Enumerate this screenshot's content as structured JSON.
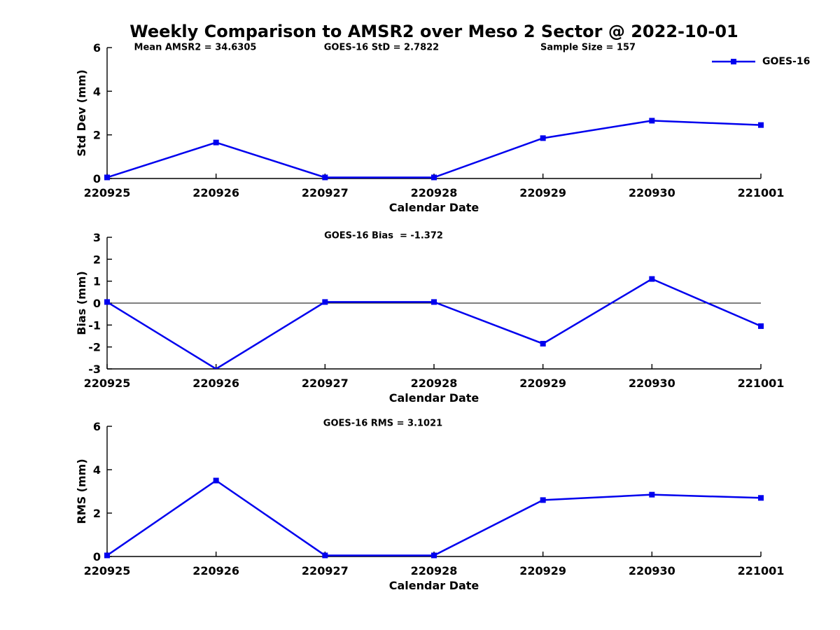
{
  "title": "Weekly Comparison to AMSR2 over Meso 2 Sector @ 2022-10-01",
  "colors": {
    "series": "#0000EE",
    "axis": "#000000",
    "background": "#FFFFFF"
  },
  "legend": {
    "label": "GOES-16"
  },
  "chart_data": [
    {
      "type": "line",
      "id": "std-dev",
      "annotations": [
        "Mean AMSR2 = 34.6305",
        "GOES-16 StD = 2.7822",
        "Sample Size = 157"
      ],
      "categories": [
        "220925",
        "220926",
        "220927",
        "220928",
        "220929",
        "220930",
        "221001"
      ],
      "series": [
        {
          "name": "GOES-16",
          "values": [
            0.05,
            1.65,
            0.05,
            0.05,
            1.85,
            2.65,
            2.45
          ]
        }
      ],
      "xlabel": "Calendar Date",
      "ylabel": "Std Dev (mm)",
      "ylim": [
        0,
        6
      ],
      "yticks": [
        0,
        2,
        4,
        6
      ],
      "zero_line": false,
      "grid": false,
      "legend_position": "top-right"
    },
    {
      "type": "line",
      "id": "bias",
      "annotations": [
        "GOES-16 Bias  = -1.372"
      ],
      "categories": [
        "220925",
        "220926",
        "220927",
        "220928",
        "220929",
        "220930",
        "221001"
      ],
      "series": [
        {
          "name": "GOES-16",
          "values": [
            0.05,
            -3.0,
            0.05,
            0.05,
            -1.85,
            1.1,
            -1.05
          ]
        }
      ],
      "xlabel": "Calendar Date",
      "ylabel": "Bias (mm)",
      "ylim": [
        -3,
        3
      ],
      "yticks": [
        -3,
        -2,
        -1,
        0,
        1,
        2,
        3
      ],
      "zero_line": true,
      "grid": false
    },
    {
      "type": "line",
      "id": "rms",
      "annotations": [
        "GOES-16 RMS = 3.1021"
      ],
      "categories": [
        "220925",
        "220926",
        "220927",
        "220928",
        "220929",
        "220930",
        "221001"
      ],
      "series": [
        {
          "name": "GOES-16",
          "values": [
            0.05,
            3.5,
            0.05,
            0.05,
            2.6,
            2.85,
            2.7
          ]
        }
      ],
      "xlabel": "Calendar Date",
      "ylabel": "RMS (mm)",
      "ylim": [
        0,
        6
      ],
      "yticks": [
        0,
        2,
        4,
        6
      ],
      "zero_line": false,
      "grid": false
    }
  ]
}
